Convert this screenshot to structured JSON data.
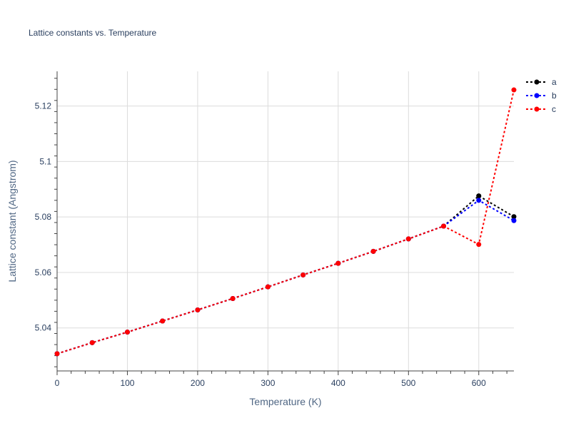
{
  "chart_data": {
    "type": "line",
    "title": "Lattice constants vs. Temperature",
    "xlabel": "Temperature (K)",
    "ylabel": "Lattice constant (Angstrom)",
    "xlim": [
      0,
      650
    ],
    "ylim": [
      5.0245,
      5.1325
    ],
    "xticks": [
      0,
      100,
      200,
      300,
      400,
      500,
      600
    ],
    "yticks": [
      5.04,
      5.06,
      5.08,
      5.1,
      5.12
    ],
    "xtick_labels": [
      "0",
      "100",
      "200",
      "300",
      "400",
      "500",
      "600"
    ],
    "ytick_labels": [
      "5.04",
      "5.06",
      "5.08",
      "5.1",
      "5.12"
    ],
    "grid": true,
    "legend_position": "top-right",
    "x": [
      0,
      50,
      100,
      150,
      200,
      250,
      300,
      350,
      400,
      450,
      500,
      550,
      600,
      650
    ],
    "series": [
      {
        "name": "a",
        "color": "#000000",
        "values": [
          5.0307,
          5.0347,
          5.0385,
          5.0425,
          5.0465,
          5.0506,
          5.0548,
          5.0591,
          5.0633,
          5.0676,
          5.0721,
          5.0767,
          5.0876,
          5.0801
        ]
      },
      {
        "name": "b",
        "color": "#0000ff",
        "values": [
          5.0307,
          5.0347,
          5.0385,
          5.0425,
          5.0465,
          5.0506,
          5.0548,
          5.0591,
          5.0633,
          5.0676,
          5.0721,
          5.0767,
          5.086,
          5.0787
        ]
      },
      {
        "name": "c",
        "color": "#ff0000",
        "values": [
          5.0307,
          5.0347,
          5.0385,
          5.0425,
          5.0465,
          5.0506,
          5.0548,
          5.0591,
          5.0633,
          5.0676,
          5.0721,
          5.0767,
          5.0701,
          5.1258
        ]
      }
    ]
  }
}
